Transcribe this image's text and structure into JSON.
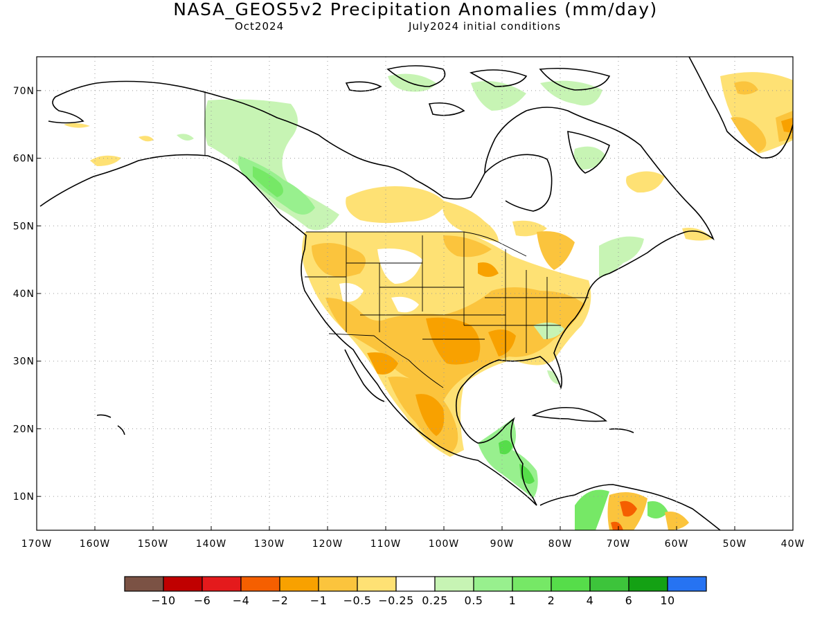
{
  "title": "NASA_GEOS5v2 Precipitation Anomalies (mm/day)",
  "subtitle_left": "Oct2024",
  "subtitle_right": "July2024 initial conditions",
  "map": {
    "lon_range": [
      -170,
      -40
    ],
    "lat_range": [
      5,
      75
    ],
    "lat_ticks": [
      {
        "value": 70,
        "label": "70N"
      },
      {
        "value": 60,
        "label": "60N"
      },
      {
        "value": 50,
        "label": "50N"
      },
      {
        "value": 40,
        "label": "40N"
      },
      {
        "value": 30,
        "label": "30N"
      },
      {
        "value": 20,
        "label": "20N"
      },
      {
        "value": 10,
        "label": "10N"
      }
    ],
    "lon_ticks": [
      {
        "value": -170,
        "label": "170W"
      },
      {
        "value": -160,
        "label": "160W"
      },
      {
        "value": -150,
        "label": "150W"
      },
      {
        "value": -140,
        "label": "140W"
      },
      {
        "value": -130,
        "label": "130W"
      },
      {
        "value": -120,
        "label": "120W"
      },
      {
        "value": -110,
        "label": "110W"
      },
      {
        "value": -100,
        "label": "100W"
      },
      {
        "value": -90,
        "label": "90W"
      },
      {
        "value": -80,
        "label": "80W"
      },
      {
        "value": -70,
        "label": "70W"
      },
      {
        "value": -60,
        "label": "60W"
      },
      {
        "value": -50,
        "label": "50W"
      },
      {
        "value": -40,
        "label": "40W"
      }
    ],
    "gridlines": "dotted"
  },
  "colorbar": {
    "colors": [
      "#7b5244",
      "#c00000",
      "#e41a1c",
      "#f55f00",
      "#f8a100",
      "#fbc43d",
      "#fee174",
      "#ffffff",
      "#c7f4b4",
      "#98f08e",
      "#76e866",
      "#56dd4a",
      "#3dc43b",
      "#14a114",
      "#2673f2"
    ],
    "labels": [
      "−10",
      "−6",
      "−4",
      "−2",
      "−1",
      "−0.5",
      "−0.25",
      "0.25",
      "0.5",
      "1",
      "2",
      "4",
      "6",
      "10"
    ]
  }
}
